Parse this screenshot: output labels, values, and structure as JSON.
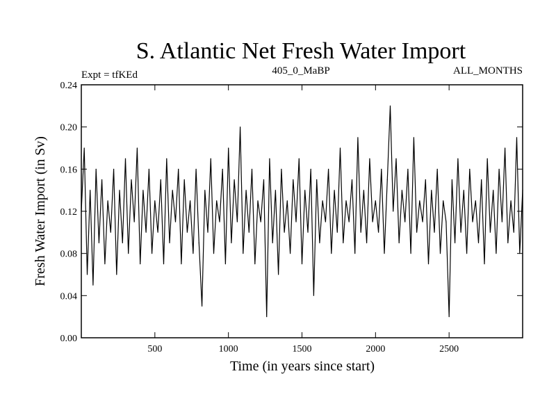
{
  "chart_data": {
    "type": "line",
    "title": "S. Atlantic Net Fresh Water Import",
    "subtitle_left": "Expt = tfKEd",
    "subtitle_center": "405_0_MaBP",
    "subtitle_right": "ALL_MONTHS",
    "xlabel": "Time (in years since start)",
    "ylabel": "Fresh Water Import (in Sv)",
    "xlim": [
      0,
      3000
    ],
    "ylim": [
      0.0,
      0.24
    ],
    "xticks": [
      500,
      1000,
      1500,
      2000,
      2500
    ],
    "xtick_labels": [
      "500",
      "1000",
      "1500",
      "2000",
      "2500"
    ],
    "yticks": [
      0.0,
      0.04,
      0.08,
      0.12,
      0.16,
      0.2,
      0.24
    ],
    "ytick_labels": [
      "0.00",
      "0.04",
      "0.08",
      "0.12",
      "0.16",
      "0.20",
      "0.24"
    ],
    "grid": false,
    "line_color": "#000000",
    "series": [
      {
        "x": [
          0,
          20,
          40,
          60,
          80,
          100,
          120,
          140,
          160,
          180,
          200,
          220,
          240,
          260,
          280,
          300,
          320,
          340,
          360,
          380,
          400,
          420,
          440,
          460,
          480,
          500,
          520,
          540,
          560,
          580,
          600,
          620,
          640,
          660,
          680,
          700,
          720,
          740,
          760,
          780,
          800,
          820,
          840,
          860,
          880,
          900,
          920,
          940,
          960,
          980,
          1000,
          1020,
          1040,
          1060,
          1080,
          1100,
          1120,
          1140,
          1160,
          1180,
          1200,
          1220,
          1240,
          1260,
          1280,
          1300,
          1320,
          1340,
          1360,
          1380,
          1400,
          1420,
          1440,
          1460,
          1480,
          1500,
          1520,
          1540,
          1560,
          1580,
          1600,
          1620,
          1640,
          1660,
          1680,
          1700,
          1720,
          1740,
          1760,
          1780,
          1800,
          1820,
          1840,
          1860,
          1880,
          1900,
          1920,
          1940,
          1960,
          1980,
          2000,
          2020,
          2040,
          2060,
          2080,
          2100,
          2120,
          2140,
          2160,
          2180,
          2200,
          2220,
          2240,
          2260,
          2280,
          2300,
          2320,
          2340,
          2360,
          2380,
          2400,
          2420,
          2440,
          2460,
          2480,
          2500,
          2520,
          2540,
          2560,
          2580,
          2600,
          2620,
          2640,
          2660,
          2680,
          2700,
          2720,
          2740,
          2760,
          2780,
          2800,
          2820,
          2840,
          2860,
          2880,
          2900,
          2920,
          2940,
          2960,
          2980,
          3000
        ],
        "values": [
          0.12,
          0.18,
          0.06,
          0.14,
          0.05,
          0.16,
          0.09,
          0.15,
          0.07,
          0.13,
          0.1,
          0.16,
          0.06,
          0.14,
          0.09,
          0.17,
          0.08,
          0.15,
          0.11,
          0.18,
          0.07,
          0.14,
          0.1,
          0.16,
          0.08,
          0.13,
          0.1,
          0.15,
          0.07,
          0.17,
          0.09,
          0.14,
          0.11,
          0.16,
          0.07,
          0.15,
          0.1,
          0.13,
          0.08,
          0.16,
          0.09,
          0.03,
          0.14,
          0.1,
          0.17,
          0.08,
          0.13,
          0.11,
          0.16,
          0.07,
          0.18,
          0.09,
          0.15,
          0.11,
          0.2,
          0.08,
          0.14,
          0.1,
          0.16,
          0.07,
          0.13,
          0.11,
          0.15,
          0.02,
          0.17,
          0.09,
          0.14,
          0.06,
          0.16,
          0.1,
          0.13,
          0.08,
          0.15,
          0.11,
          0.17,
          0.07,
          0.14,
          0.1,
          0.16,
          0.04,
          0.15,
          0.09,
          0.13,
          0.11,
          0.16,
          0.08,
          0.14,
          0.1,
          0.18,
          0.09,
          0.13,
          0.11,
          0.15,
          0.08,
          0.19,
          0.1,
          0.14,
          0.09,
          0.17,
          0.11,
          0.13,
          0.1,
          0.16,
          0.08,
          0.15,
          0.22,
          0.12,
          0.17,
          0.09,
          0.14,
          0.11,
          0.16,
          0.08,
          0.19,
          0.1,
          0.13,
          0.11,
          0.15,
          0.07,
          0.14,
          0.1,
          0.16,
          0.08,
          0.13,
          0.11,
          0.02,
          0.15,
          0.09,
          0.17,
          0.1,
          0.14,
          0.08,
          0.16,
          0.11,
          0.13,
          0.09,
          0.15,
          0.07,
          0.17,
          0.1,
          0.14,
          0.08,
          0.16,
          0.11,
          0.18,
          0.09,
          0.13,
          0.1,
          0.19,
          0.08,
          0.14
        ]
      }
    ]
  }
}
